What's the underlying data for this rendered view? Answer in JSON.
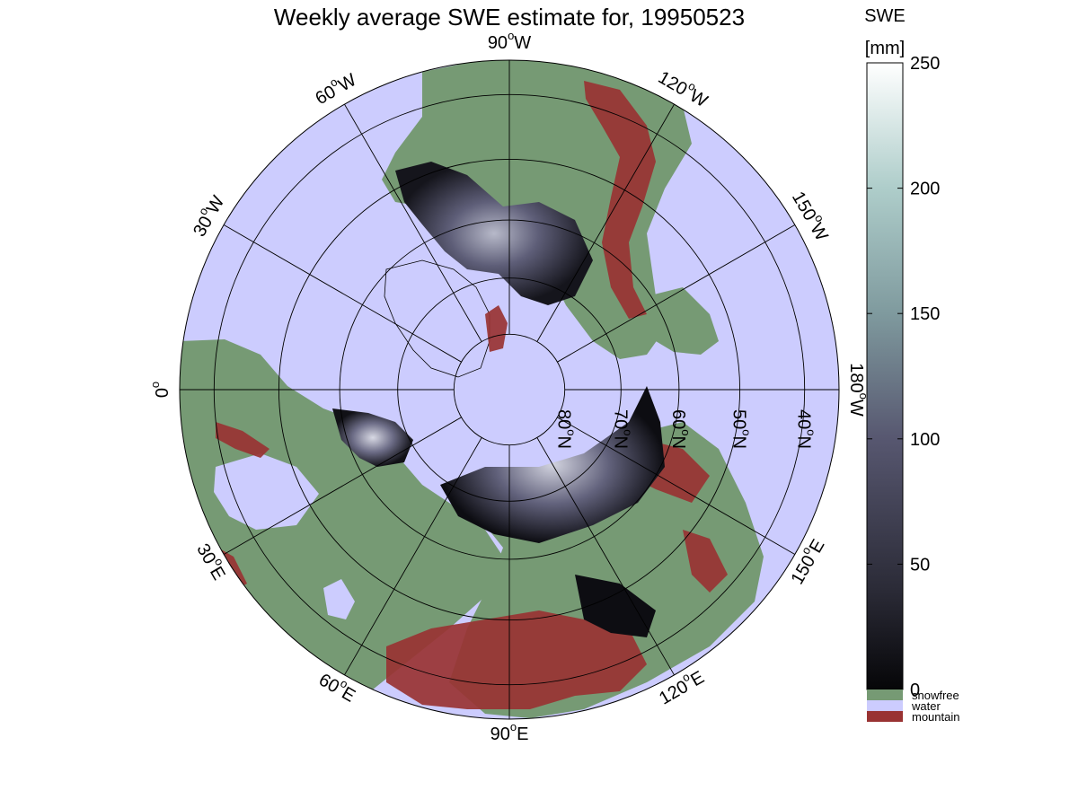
{
  "title": "Weekly average SWE estimate for, 19950523",
  "colorbar": {
    "label_line1": "SWE",
    "label_line2": "[mm]",
    "ticks": [
      {
        "value": 0,
        "label": "0"
      },
      {
        "value": 50,
        "label": "50"
      },
      {
        "value": 100,
        "label": "100"
      },
      {
        "value": 150,
        "label": "150"
      },
      {
        "value": 200,
        "label": "200"
      },
      {
        "value": 250,
        "label": "250"
      }
    ],
    "range": [
      0,
      250
    ],
    "gradient_stops": [
      {
        "value": 0,
        "color": "#060608"
      },
      {
        "value": 40,
        "color": "#2b2b37"
      },
      {
        "value": 100,
        "color": "#575770"
      },
      {
        "value": 150,
        "color": "#7f9a9e"
      },
      {
        "value": 200,
        "color": "#aecdca"
      },
      {
        "value": 250,
        "color": "#ffffff"
      }
    ],
    "categories": [
      {
        "label": "snowfree",
        "color": "#769a74"
      },
      {
        "label": "water",
        "color": "#ccccfe"
      },
      {
        "label": "mountain",
        "color": "#993333"
      }
    ]
  },
  "map": {
    "projection": "north polar stereographic",
    "longitude_labels": [
      {
        "lon": 0,
        "text": "0",
        "sup": "o"
      },
      {
        "lon": 30,
        "text": "30",
        "sup": "o",
        "suffix": "W"
      },
      {
        "lon": 60,
        "text": "60",
        "sup": "o",
        "suffix": "W"
      },
      {
        "lon": 90,
        "text": "90",
        "sup": "o",
        "suffix": "W"
      },
      {
        "lon": 120,
        "text": "120",
        "sup": "o",
        "suffix": "W"
      },
      {
        "lon": 150,
        "text": "150",
        "sup": "o",
        "suffix": "W"
      },
      {
        "lon": 180,
        "text": "180",
        "sup": "o",
        "suffix": "W"
      },
      {
        "lon": 210,
        "text": "150",
        "sup": "o",
        "suffix": "E"
      },
      {
        "lon": 240,
        "text": "120",
        "sup": "o",
        "suffix": "E"
      },
      {
        "lon": 270,
        "text": "90",
        "sup": "o",
        "suffix": "E"
      },
      {
        "lon": 300,
        "text": "60",
        "sup": "o",
        "suffix": "E"
      },
      {
        "lon": 330,
        "text": "30",
        "sup": "o",
        "suffix": "E"
      }
    ],
    "latitude_labels": [
      {
        "lat": 80,
        "text": "80",
        "sup": "o",
        "suffix": "N"
      },
      {
        "lat": 70,
        "text": "70",
        "sup": "o",
        "suffix": "N"
      },
      {
        "lat": 60,
        "text": "60",
        "sup": "o",
        "suffix": "N"
      },
      {
        "lat": 50,
        "text": "50",
        "sup": "o",
        "suffix": "N"
      },
      {
        "lat": 40,
        "text": "40",
        "sup": "o",
        "suffix": "N"
      }
    ]
  },
  "colors": {
    "snowfree": "#769a74",
    "water": "#ccccfe",
    "mountain": "#993333",
    "grid": "#000000"
  }
}
